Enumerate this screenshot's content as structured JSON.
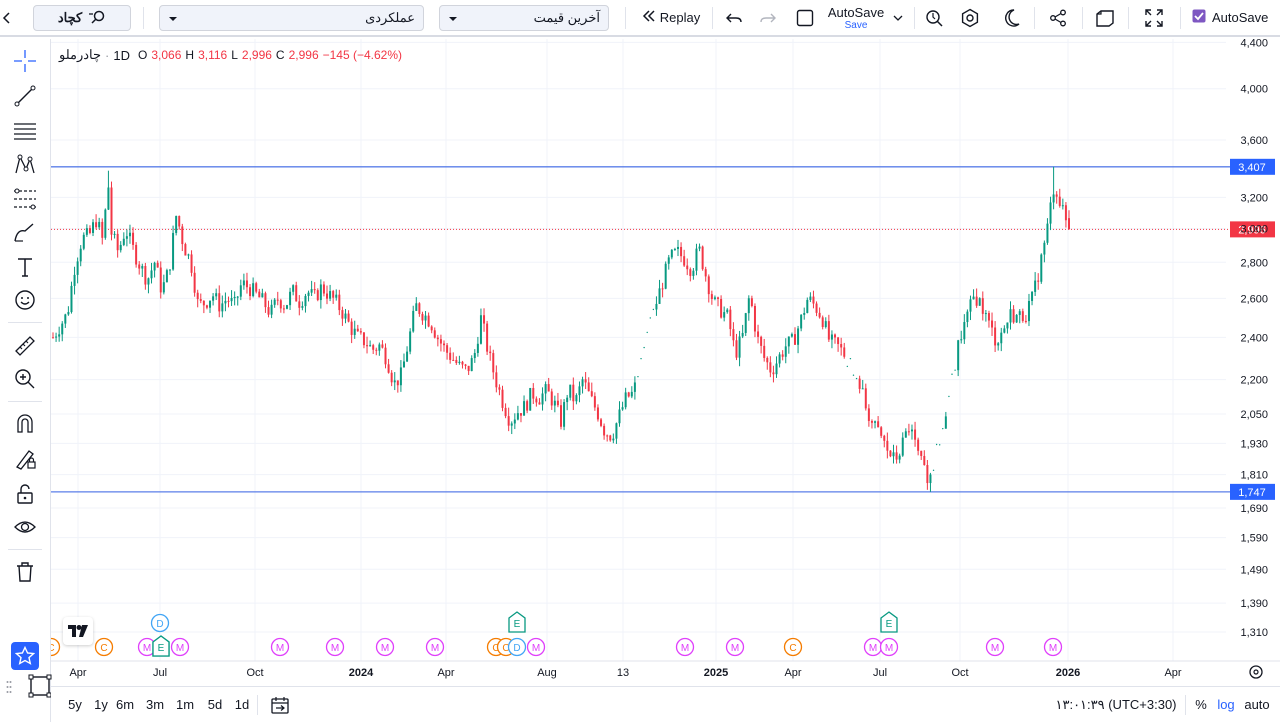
{
  "topbar": {
    "search_label": "کچاد",
    "dropdown1_label": "عملکردی",
    "dropdown2_label": "آخرین قیمت",
    "replay_label": "Replay",
    "autosave_label": "AutoSave",
    "autosave_sub": "Save",
    "autosave_check_label": "AutoSave"
  },
  "legend": {
    "symbol": "چادرملو",
    "interval": "1D",
    "o_label": "O",
    "o_value": "3,066",
    "h_label": "H",
    "h_value": "3,116",
    "l_label": "L",
    "l_value": "2,996",
    "c_label": "C",
    "c_value": "2,996",
    "change": "−145 (−4.62%)"
  },
  "bottombar": {
    "ranges": [
      "5y",
      "1y",
      "6m",
      "3m",
      "1m",
      "5d",
      "1d"
    ],
    "time": "۱۳:۰۱:۳۹ (UTC+3:30)",
    "percent": "%",
    "log": "log",
    "auto": "auto"
  },
  "colors": {
    "up": "#089981",
    "down": "#f23645",
    "accent": "#2962ff",
    "hline": "#5b7fe8"
  },
  "chart_data": {
    "type": "candlestick",
    "symbol": "چادرملو",
    "interval": "1D",
    "y_scale": "log",
    "y_ticks": [
      1310,
      1390,
      1490,
      1590,
      1690,
      1810,
      1930,
      2050,
      2200,
      2400,
      2600,
      2800,
      3000,
      3200,
      3600,
      4000,
      4400
    ],
    "y_tick_labels": [
      "1,310",
      "1,390",
      "1,490",
      "1,590",
      "1,690",
      "1,810",
      "1,930",
      "2,050",
      "2,200",
      "2,400",
      "2,600",
      "2,800",
      "3,000",
      "3,200",
      "3,600",
      "4,000",
      "4,400"
    ],
    "x_ticks": [
      "Apr",
      "Jul",
      "Oct",
      "2024",
      "Apr",
      "Aug",
      "13",
      "2025",
      "Apr",
      "Jul",
      "Oct",
      "2026",
      "Apr"
    ],
    "hlines": [
      {
        "value": 3407,
        "label": "3,407"
      },
      {
        "value": 1747,
        "label": "1,747"
      }
    ],
    "last_price": {
      "value": 2996,
      "label": "2,996"
    },
    "close_path": [
      [
        0,
        2400
      ],
      [
        2,
        2520
      ],
      [
        3,
        2780
      ],
      [
        4,
        2940
      ],
      [
        5,
        2960
      ],
      [
        6,
        3060
      ],
      [
        7,
        2900
      ],
      [
        7.5,
        3380
      ],
      [
        8,
        2980
      ],
      [
        9,
        2860
      ],
      [
        10,
        3000
      ],
      [
        11,
        2880
      ],
      [
        12,
        2780
      ],
      [
        13,
        2700
      ],
      [
        14,
        2800
      ],
      [
        15,
        2640
      ],
      [
        16,
        2760
      ],
      [
        17,
        3090
      ],
      [
        18,
        2900
      ],
      [
        19,
        2800
      ],
      [
        20,
        2560
      ],
      [
        21,
        2580
      ],
      [
        22,
        2620
      ],
      [
        23,
        2560
      ],
      [
        24,
        2600
      ],
      [
        25,
        2560
      ],
      [
        26,
        2680
      ],
      [
        27,
        2660
      ],
      [
        28,
        2620
      ],
      [
        29,
        2580
      ],
      [
        30,
        2520
      ],
      [
        31,
        2600
      ],
      [
        32,
        2560
      ],
      [
        33,
        2640
      ],
      [
        34,
        2580
      ],
      [
        35,
        2640
      ],
      [
        36,
        2600
      ],
      [
        37,
        2660
      ],
      [
        38,
        2620
      ],
      [
        39,
        2580
      ],
      [
        40,
        2520
      ],
      [
        41,
        2450
      ],
      [
        42,
        2400
      ],
      [
        43,
        2380
      ],
      [
        44,
        2340
      ],
      [
        45,
        2360
      ],
      [
        46,
        2300
      ],
      [
        47,
        2180
      ],
      [
        48,
        2220
      ],
      [
        49,
        2380
      ],
      [
        50,
        2560
      ],
      [
        51,
        2520
      ],
      [
        52,
        2480
      ],
      [
        53,
        2400
      ],
      [
        54,
        2340
      ],
      [
        55,
        2300
      ],
      [
        56,
        2260
      ],
      [
        57,
        2240
      ],
      [
        58,
        2300
      ],
      [
        59,
        2500
      ],
      [
        60,
        2320
      ],
      [
        61,
        2200
      ],
      [
        62,
        2100
      ],
      [
        63,
        2020
      ],
      [
        64,
        2060
      ],
      [
        65,
        2080
      ],
      [
        66,
        2140
      ],
      [
        67,
        2120
      ],
      [
        68,
        2150
      ],
      [
        69,
        2100
      ],
      [
        70,
        2020
      ],
      [
        71,
        2160
      ],
      [
        72,
        2100
      ],
      [
        73,
        2200
      ],
      [
        74,
        2120
      ],
      [
        75,
        2060
      ],
      [
        76,
        1980
      ],
      [
        77,
        1960
      ],
      [
        78,
        2040
      ],
      [
        79,
        2120
      ],
      [
        80,
        2140
      ],
      [
        83,
        2560
      ],
      [
        85,
        2820
      ],
      [
        86,
        2860
      ],
      [
        87,
        2820
      ],
      [
        88,
        2760
      ],
      [
        89,
        2880
      ],
      [
        90,
        2720
      ],
      [
        91,
        2580
      ],
      [
        92,
        2540
      ],
      [
        93,
        2500
      ],
      [
        94,
        2320
      ],
      [
        95,
        2400
      ],
      [
        96,
        2620
      ],
      [
        97,
        2400
      ],
      [
        98,
        2300
      ],
      [
        99,
        2240
      ],
      [
        100,
        2300
      ],
      [
        101,
        2360
      ],
      [
        102,
        2380
      ],
      [
        103,
        2480
      ],
      [
        104,
        2600
      ],
      [
        105,
        2560
      ],
      [
        106,
        2500
      ],
      [
        107,
        2380
      ],
      [
        108,
        2360
      ],
      [
        109,
        2320
      ],
      [
        111,
        2200
      ],
      [
        112,
        2080
      ],
      [
        113,
        2000
      ],
      [
        114,
        1960
      ],
      [
        115,
        1900
      ],
      [
        116,
        1860
      ],
      [
        117,
        1920
      ],
      [
        118,
        2000
      ],
      [
        119,
        1900
      ],
      [
        120,
        1820
      ],
      [
        121,
        1800
      ],
      [
        123,
        2060
      ],
      [
        125,
        2400
      ],
      [
        126,
        2500
      ],
      [
        127,
        2620
      ],
      [
        128,
        2560
      ],
      [
        129,
        2460
      ],
      [
        130,
        2380
      ],
      [
        131,
        2440
      ],
      [
        132,
        2520
      ],
      [
        133,
        2500
      ],
      [
        134,
        2520
      ],
      [
        135,
        2600
      ],
      [
        136,
        2780
      ],
      [
        137,
        3000
      ],
      [
        138,
        3300
      ],
      [
        139,
        3120
      ],
      [
        140,
        2996
      ]
    ],
    "event_markers": [
      "C",
      "C",
      "M",
      "E",
      "M",
      "M",
      "M",
      "M",
      "M",
      "C",
      "C",
      "C",
      "E",
      "D",
      "M",
      "M",
      "M",
      "C",
      "M",
      "E",
      "M",
      "M",
      "M",
      "D"
    ]
  }
}
